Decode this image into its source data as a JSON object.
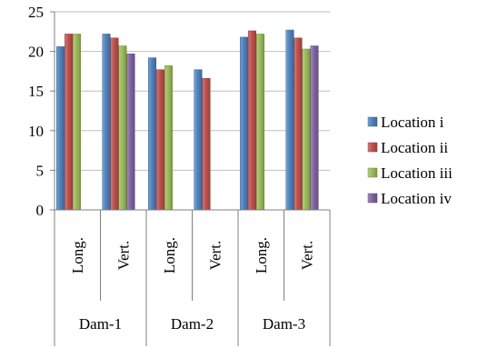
{
  "chart_data": {
    "type": "bar",
    "title": "",
    "xlabel": "",
    "ylabel": "",
    "ylim": [
      0,
      25
    ],
    "yticks": [
      0,
      5,
      10,
      15,
      20,
      25
    ],
    "grid": true,
    "legend_position": "right",
    "groups": [
      {
        "label": "Dam-1",
        "categories": [
          "Long.",
          "Vert."
        ]
      },
      {
        "label": "Dam-2",
        "categories": [
          "Long.",
          "Vert."
        ]
      },
      {
        "label": "Dam-3",
        "categories": [
          "Long.",
          "Vert."
        ]
      }
    ],
    "series": [
      {
        "name": "Location i",
        "color": "#4f81bd",
        "values": [
          20.6,
          22.2,
          19.2,
          17.7,
          21.8,
          22.7
        ]
      },
      {
        "name": "Location ii",
        "color": "#c0504d",
        "values": [
          22.2,
          21.7,
          17.7,
          16.6,
          22.6,
          21.7
        ]
      },
      {
        "name": "Location iii",
        "color": "#9bbb59",
        "values": [
          22.2,
          20.7,
          18.2,
          null,
          22.2,
          20.3
        ]
      },
      {
        "name": "Location iv",
        "color": "#8064a2",
        "values": [
          null,
          19.7,
          null,
          null,
          null,
          20.7
        ]
      }
    ]
  }
}
